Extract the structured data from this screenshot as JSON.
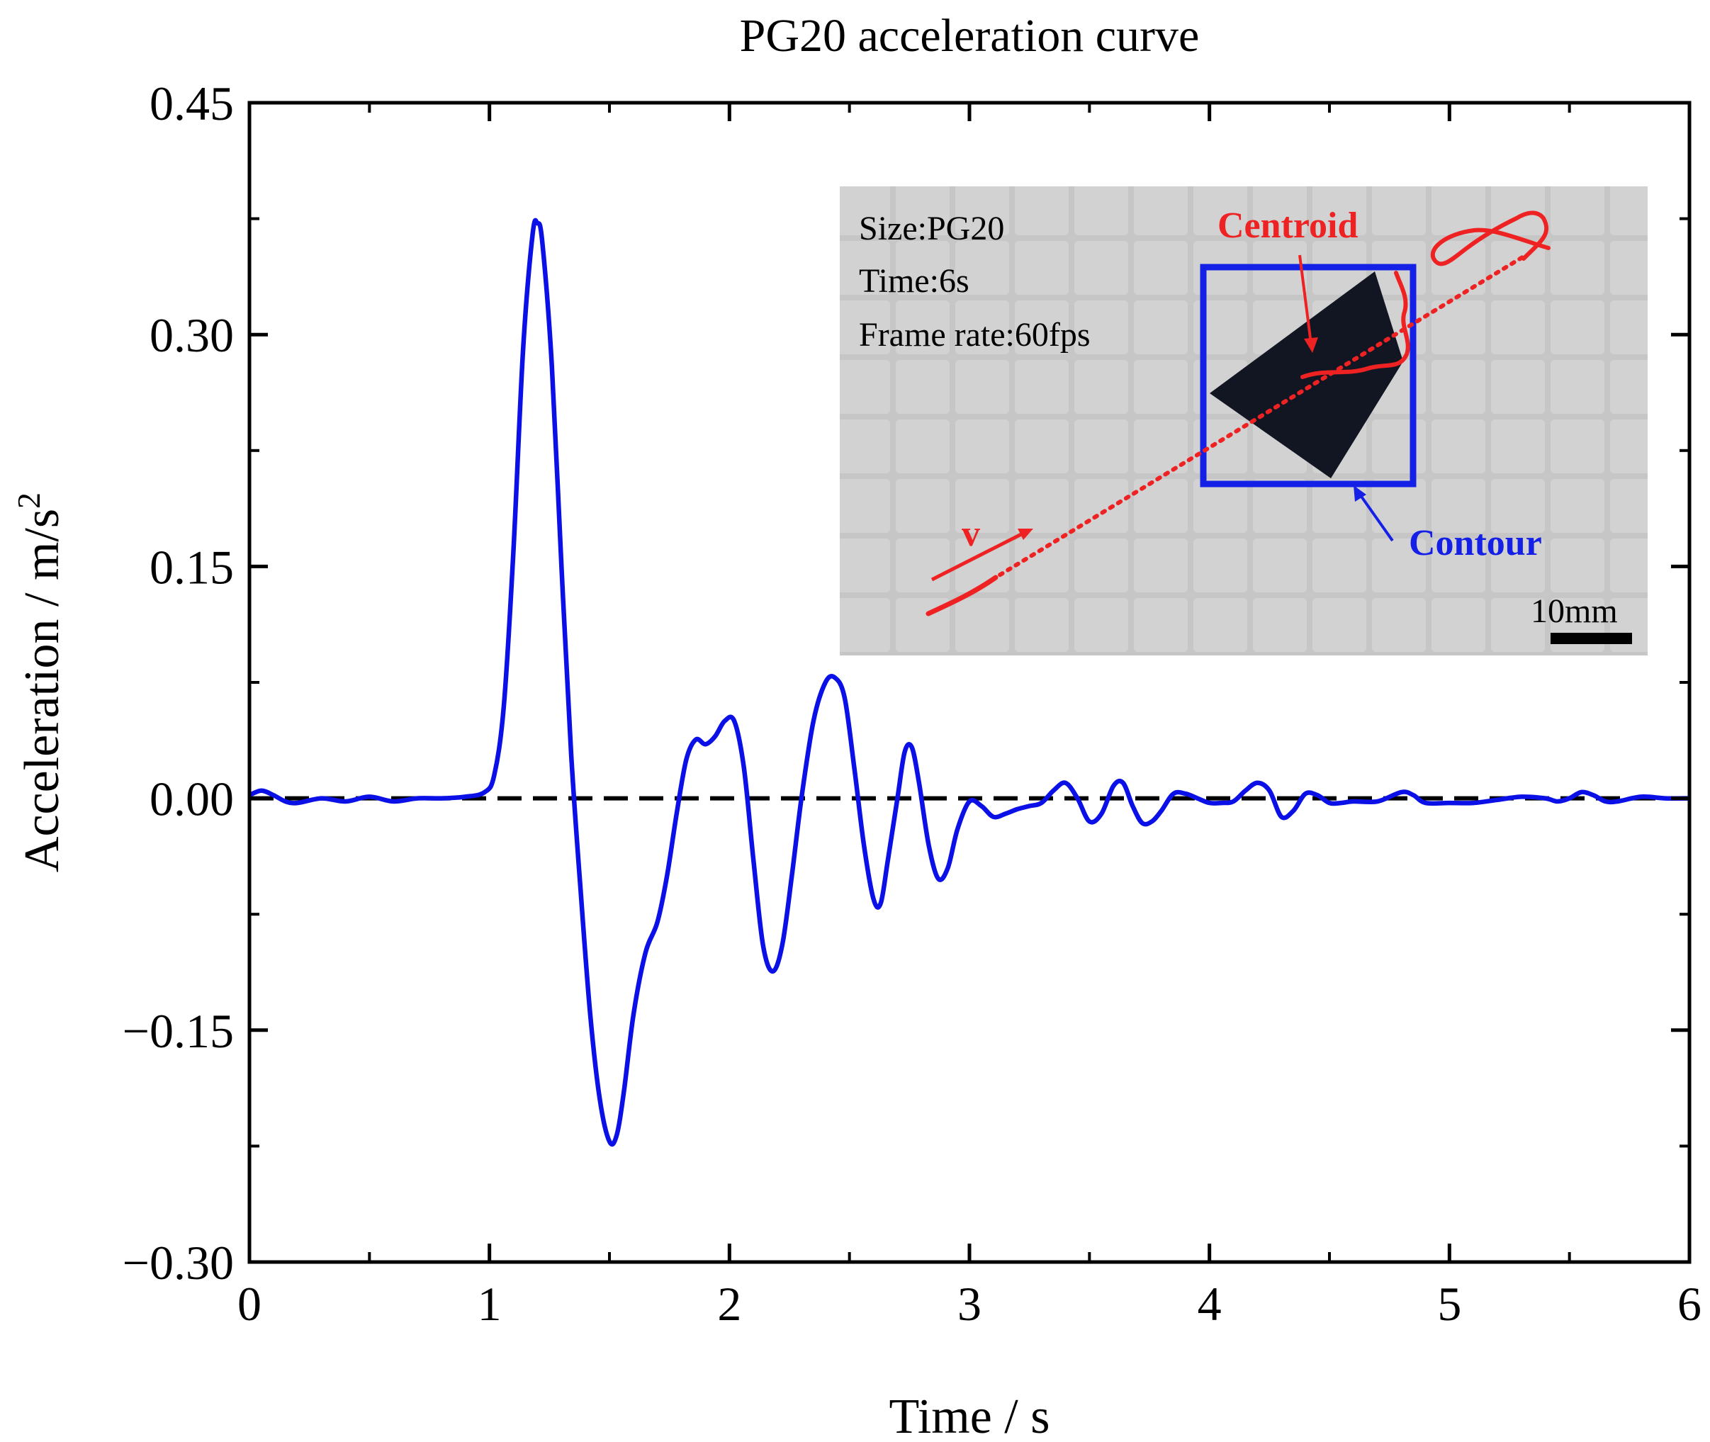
{
  "chart_data": {
    "type": "line",
    "title": "PG20 acceleration curve",
    "xlabel": "Time / s",
    "ylabel": {
      "base": "Acceleration / m/s",
      "sup": "2"
    },
    "xlim": [
      0,
      6
    ],
    "ylim": [
      -0.3,
      0.45
    ],
    "xticks": [
      0,
      1,
      2,
      3,
      4,
      5,
      6
    ],
    "yticks": [
      -0.3,
      -0.15,
      0.0,
      0.15,
      0.3,
      0.45
    ],
    "xtick_labels": [
      "0",
      "1",
      "2",
      "3",
      "4",
      "5",
      "6"
    ],
    "ytick_labels": [
      "−0.30",
      "−0.15",
      "0.00",
      "0.15",
      "0.30",
      "0.45"
    ],
    "reference_line": {
      "y": 0,
      "style": "dashed",
      "color": "#000000"
    },
    "series": [
      {
        "name": "PG20 acceleration",
        "color": "#0a10e6",
        "points": [
          [
            0.0,
            0.002
          ],
          [
            0.05,
            0.005
          ],
          [
            0.1,
            0.002
          ],
          [
            0.15,
            -0.002
          ],
          [
            0.2,
            -0.003
          ],
          [
            0.3,
            0.0
          ],
          [
            0.4,
            -0.002
          ],
          [
            0.5,
            0.001
          ],
          [
            0.6,
            -0.002
          ],
          [
            0.7,
            0.0
          ],
          [
            0.8,
            0.0
          ],
          [
            0.9,
            0.001
          ],
          [
            0.98,
            0.004
          ],
          [
            1.02,
            0.015
          ],
          [
            1.06,
            0.06
          ],
          [
            1.1,
            0.16
          ],
          [
            1.14,
            0.29
          ],
          [
            1.18,
            0.365
          ],
          [
            1.2,
            0.372
          ],
          [
            1.22,
            0.36
          ],
          [
            1.26,
            0.28
          ],
          [
            1.3,
            0.15
          ],
          [
            1.34,
            0.03
          ],
          [
            1.38,
            -0.06
          ],
          [
            1.42,
            -0.14
          ],
          [
            1.46,
            -0.195
          ],
          [
            1.5,
            -0.222
          ],
          [
            1.53,
            -0.218
          ],
          [
            1.56,
            -0.19
          ],
          [
            1.6,
            -0.14
          ],
          [
            1.65,
            -0.1
          ],
          [
            1.7,
            -0.08
          ],
          [
            1.74,
            -0.05
          ],
          [
            1.78,
            -0.01
          ],
          [
            1.82,
            0.025
          ],
          [
            1.86,
            0.038
          ],
          [
            1.9,
            0.035
          ],
          [
            1.94,
            0.04
          ],
          [
            1.98,
            0.05
          ],
          [
            2.02,
            0.05
          ],
          [
            2.06,
            0.02
          ],
          [
            2.1,
            -0.04
          ],
          [
            2.14,
            -0.095
          ],
          [
            2.18,
            -0.112
          ],
          [
            2.22,
            -0.095
          ],
          [
            2.26,
            -0.05
          ],
          [
            2.3,
            0.0
          ],
          [
            2.35,
            0.05
          ],
          [
            2.4,
            0.075
          ],
          [
            2.44,
            0.078
          ],
          [
            2.48,
            0.065
          ],
          [
            2.52,
            0.02
          ],
          [
            2.56,
            -0.03
          ],
          [
            2.6,
            -0.065
          ],
          [
            2.63,
            -0.068
          ],
          [
            2.66,
            -0.04
          ],
          [
            2.7,
            0.0
          ],
          [
            2.73,
            0.03
          ],
          [
            2.76,
            0.033
          ],
          [
            2.79,
            0.01
          ],
          [
            2.83,
            -0.03
          ],
          [
            2.87,
            -0.052
          ],
          [
            2.91,
            -0.045
          ],
          [
            2.95,
            -0.02
          ],
          [
            3.0,
            -0.002
          ],
          [
            3.05,
            -0.005
          ],
          [
            3.1,
            -0.012
          ],
          [
            3.15,
            -0.01
          ],
          [
            3.2,
            -0.007
          ],
          [
            3.25,
            -0.005
          ],
          [
            3.3,
            -0.003
          ],
          [
            3.35,
            0.005
          ],
          [
            3.4,
            0.01
          ],
          [
            3.45,
            0.0
          ],
          [
            3.5,
            -0.015
          ],
          [
            3.55,
            -0.01
          ],
          [
            3.6,
            0.008
          ],
          [
            3.64,
            0.01
          ],
          [
            3.68,
            -0.005
          ],
          [
            3.72,
            -0.016
          ],
          [
            3.76,
            -0.015
          ],
          [
            3.8,
            -0.008
          ],
          [
            3.85,
            0.003
          ],
          [
            3.9,
            0.003
          ],
          [
            3.95,
            0.0
          ],
          [
            4.0,
            -0.003
          ],
          [
            4.05,
            -0.003
          ],
          [
            4.1,
            -0.002
          ],
          [
            4.15,
            0.005
          ],
          [
            4.2,
            0.01
          ],
          [
            4.25,
            0.005
          ],
          [
            4.3,
            -0.012
          ],
          [
            4.35,
            -0.008
          ],
          [
            4.4,
            0.003
          ],
          [
            4.45,
            0.002
          ],
          [
            4.5,
            -0.003
          ],
          [
            4.55,
            -0.003
          ],
          [
            4.6,
            -0.002
          ],
          [
            4.7,
            -0.002
          ],
          [
            4.8,
            0.004
          ],
          [
            4.85,
            0.002
          ],
          [
            4.9,
            -0.003
          ],
          [
            5.0,
            -0.003
          ],
          [
            5.1,
            -0.003
          ],
          [
            5.2,
            -0.001
          ],
          [
            5.3,
            0.001
          ],
          [
            5.4,
            0.0
          ],
          [
            5.45,
            -0.002
          ],
          [
            5.5,
            0.0
          ],
          [
            5.55,
            0.004
          ],
          [
            5.6,
            0.002
          ],
          [
            5.65,
            -0.002
          ],
          [
            5.7,
            -0.002
          ],
          [
            5.8,
            0.001
          ],
          [
            5.9,
            0.0
          ],
          [
            6.0,
            0.0
          ]
        ]
      }
    ],
    "inset": {
      "info_lines": [
        "Size:PG20",
        "Time:6s",
        "Frame rate:60fps"
      ],
      "centroid_label": "Centroid",
      "contour_label": "Contour",
      "velocity_label": "v",
      "scale_label": "10mm",
      "colors": {
        "background": "#c9c9c9",
        "trajectory": "#ee2222",
        "contour": "#1520e6",
        "object": "#121622"
      }
    }
  }
}
